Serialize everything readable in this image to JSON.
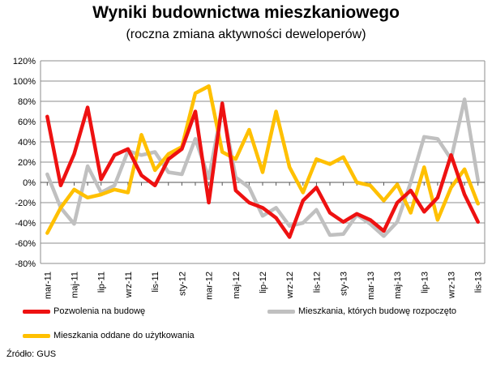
{
  "title": "Wyniki budownictwa mieszkaniowego",
  "subtitle": "(roczna zmiana aktywności deweloperów)",
  "source": "Źródło: GUS",
  "chart_data": {
    "type": "line",
    "x": [
      "mar-11",
      "kwi-11",
      "maj-11",
      "cze-11",
      "lip-11",
      "sie-11",
      "wrz-11",
      "paź-11",
      "lis-11",
      "gru-11",
      "sty-12",
      "lut-12",
      "mar-12",
      "kwi-12",
      "maj-12",
      "cze-12",
      "lip-12",
      "sie-12",
      "wrz-12",
      "paź-12",
      "lis-12",
      "gru-12",
      "sty-13",
      "lut-13",
      "mar-13",
      "kwi-13",
      "maj-13",
      "cze-13",
      "lip-13",
      "sie-13",
      "wrz-13",
      "paź-13",
      "lis-13"
    ],
    "tick_labels": [
      "mar-11",
      "maj-11",
      "lip-11",
      "wrz-11",
      "lis-11",
      "sty-12",
      "mar-12",
      "maj-12",
      "lip-12",
      "wrz-12",
      "lis-12",
      "sty-13",
      "mar-13",
      "maj-13",
      "lip-13",
      "wrz-13",
      "lis-13"
    ],
    "y_tick_labels": [
      "120%",
      "100%",
      "80%",
      "60%",
      "40%",
      "20%",
      "0%",
      "-20%",
      "-40%",
      "-60%",
      "-80%"
    ],
    "ylim": [
      -80,
      120
    ],
    "ytick_step": 20,
    "grid": true,
    "legend": "bottom",
    "series": [
      {
        "name": "Pozwolenia na budowę",
        "color": "#ee1111",
        "values": [
          65,
          -3,
          28,
          74,
          3,
          27,
          33,
          7,
          -3,
          23,
          33,
          70,
          -20,
          78,
          -8,
          -20,
          -25,
          -35,
          -54,
          -18,
          -5,
          -30,
          -39,
          -31,
          -37,
          -48,
          -20,
          -8,
          -29,
          -15,
          27,
          -12,
          -39
        ]
      },
      {
        "name": "Mieszkania, których budowę rozpoczęto",
        "color": "#c0c0c0",
        "values": [
          8,
          -25,
          -41,
          16,
          -10,
          -3,
          31,
          27,
          30,
          10,
          8,
          43,
          4,
          75,
          5,
          -5,
          -33,
          -25,
          -43,
          -40,
          -27,
          -52,
          -51,
          -32,
          -41,
          -53,
          -39,
          0,
          45,
          43,
          23,
          82,
          2
        ]
      },
      {
        "name": "Mieszkania oddane do użytkowania",
        "color": "#ffc000",
        "values": [
          -50,
          -25,
          -7,
          -15,
          -12,
          -7,
          -10,
          47,
          12,
          28,
          35,
          88,
          95,
          30,
          23,
          52,
          10,
          70,
          15,
          -10,
          23,
          18,
          25,
          0,
          -3,
          -18,
          -2,
          -30,
          15,
          -37,
          -5,
          13,
          -21
        ]
      }
    ]
  }
}
